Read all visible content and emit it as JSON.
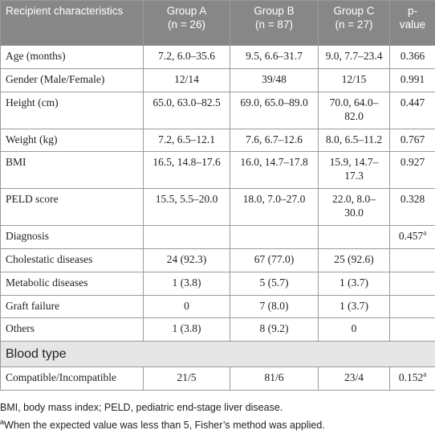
{
  "table": {
    "header": [
      {
        "title": "Recipient characteristics"
      },
      {
        "title": "Group A",
        "sub": "(n = 26)"
      },
      {
        "title": "Group B",
        "sub": "(n = 87)"
      },
      {
        "title": "Group C",
        "sub": "(n = 27)"
      },
      {
        "title": "p-value"
      }
    ],
    "rows": [
      [
        "Age (months)",
        "7.2, 6.0–35.6",
        "9.5, 6.6–31.7",
        "9.0, 7.7–23.4",
        "0.366"
      ],
      [
        "Gender (Male/Female)",
        "12/14",
        "39/48",
        "12/15",
        "0.991"
      ],
      [
        "Height (cm)",
        "65.0, 63.0–82.5",
        "69.0, 65.0–89.0",
        "70.0, 64.0–82.0",
        "0.447"
      ],
      [
        "Weight (kg)",
        "7.2, 6.5–12.1",
        "7.6, 6.7–12.6",
        "8.0, 6.5–11.2",
        "0.767"
      ],
      [
        "BMI",
        "16.5, 14.8–17.6",
        "16.0, 14.7–17.8",
        "15.9, 14.7–17.3",
        "0.927"
      ],
      [
        "PELD score",
        "15.5, 5.5–20.0",
        "18.0, 7.0–27.0",
        "22.0, 8.0–30.0",
        "0.328"
      ],
      [
        "Diagnosis",
        "",
        "",
        "",
        {
          "text": "0.457",
          "sup": "a"
        }
      ],
      [
        "Cholestatic diseases",
        "24 (92.3)",
        "67 (77.0)",
        "25 (92.6)",
        ""
      ],
      [
        "Metabolic diseases",
        "1 (3.8)",
        "5 (5.7)",
        "1 (3.7)",
        ""
      ],
      [
        "Graft failure",
        "0",
        "7 (8.0)",
        "1 (3.7)",
        ""
      ],
      [
        "Others",
        "1 (3.8)",
        "8 (9.2)",
        "0",
        ""
      ],
      {
        "section": "Blood type"
      },
      [
        "Compatible/Incompatible",
        "21/5",
        "81/6",
        "23/4",
        {
          "text": "0.152",
          "sup": "a"
        }
      ]
    ]
  },
  "footnotes": [
    {
      "text": "BMI, body mass index; PELD, pediatric end-stage liver disease."
    },
    {
      "sup": "a",
      "text": "When the expected value was less than 5, Fisher’s method was applied."
    }
  ]
}
